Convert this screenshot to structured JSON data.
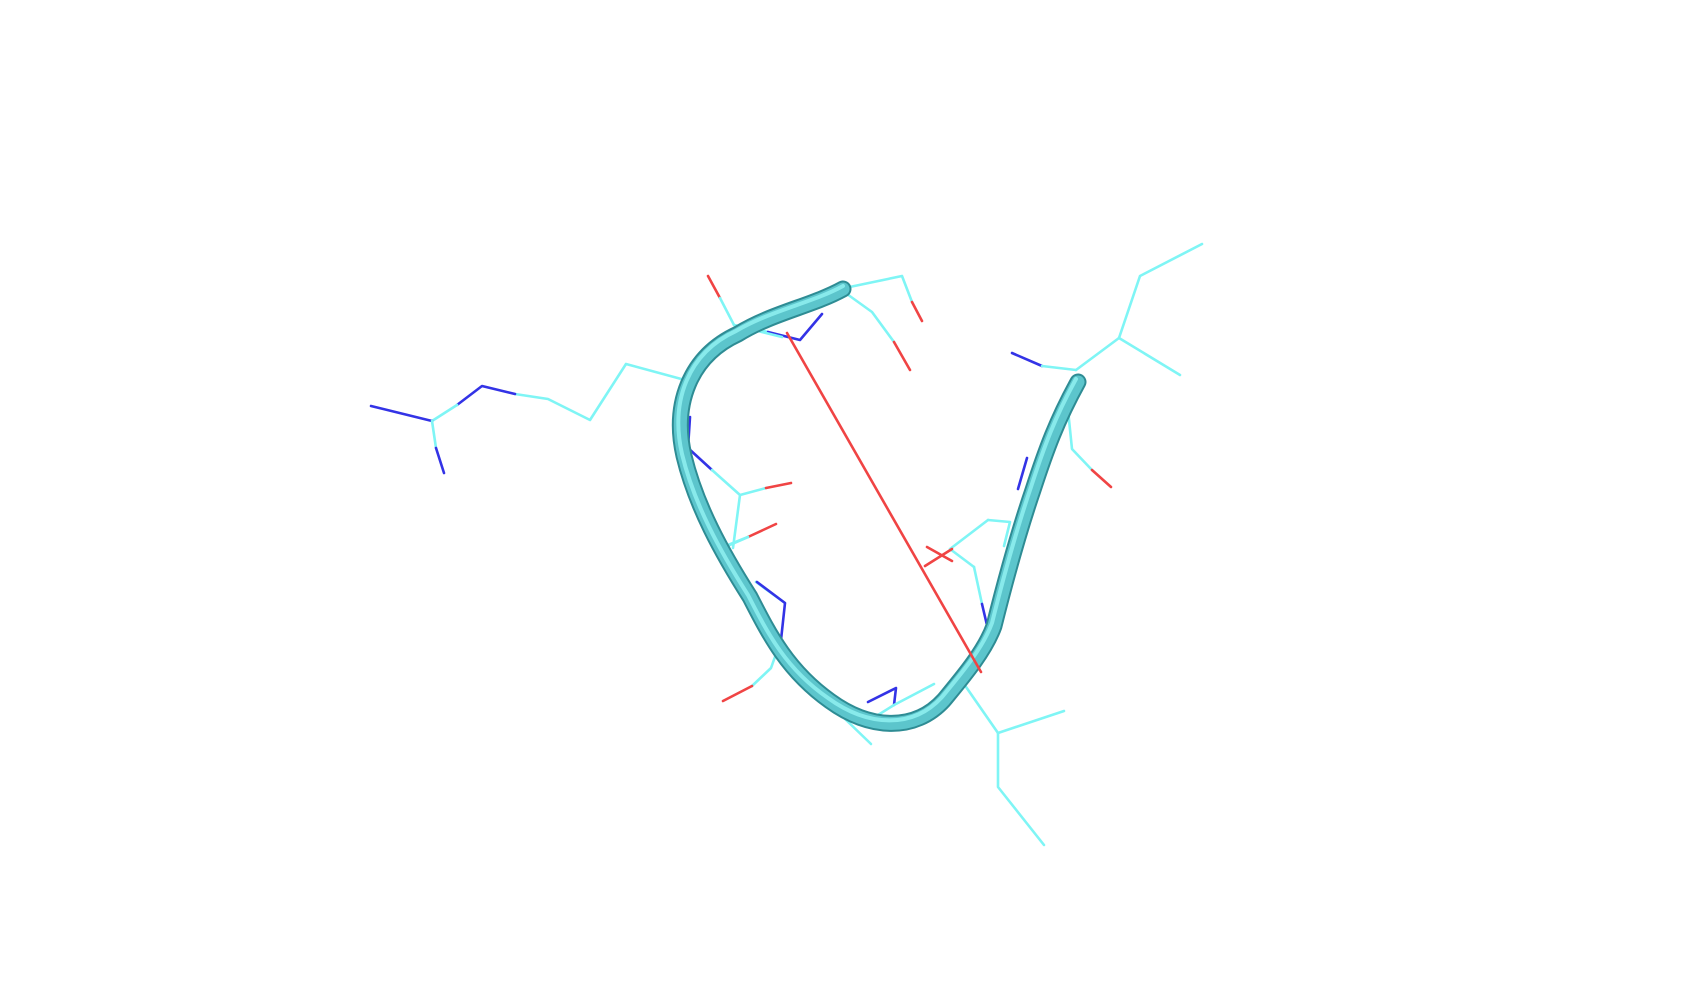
{
  "scene": {
    "kind": "molecular-viewer-render",
    "background": "#ffffff",
    "representation": [
      "cartoon-tube",
      "lines"
    ],
    "colors": {
      "carbon": "#7ff5f5",
      "nitrogen": "#3333e6",
      "oxygen": "#f04444",
      "tube_light": "#8ff0f0",
      "tube_mid": "#5cc5cc",
      "tube_dark": "#2e8c94",
      "distance_line": "#f04444"
    },
    "icons": {
      "backbone": "backbone-tube-icon",
      "distance": "distance-measure-icon"
    }
  }
}
